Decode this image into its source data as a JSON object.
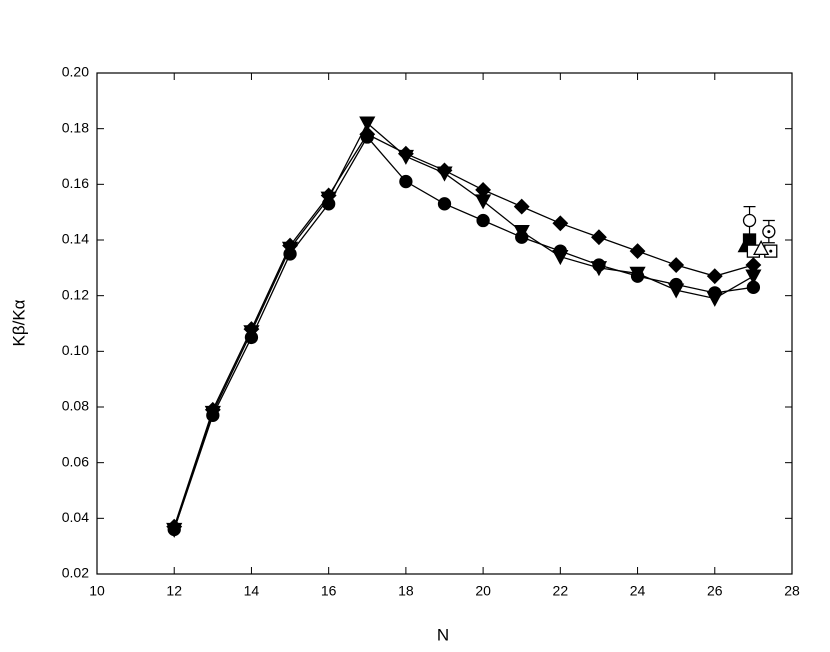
{
  "chart_data": {
    "type": "line",
    "x_label": "N",
    "y_label": "Kβ/Kα",
    "xlim": [
      10,
      28
    ],
    "ylim": [
      0.02,
      0.2
    ],
    "xticks": [
      10,
      12,
      14,
      16,
      18,
      20,
      22,
      24,
      26,
      28
    ],
    "yticks": [
      0.02,
      0.04,
      0.06,
      0.08,
      {
        "value": 0.1,
        "label": "0.10"
      },
      0.12,
      0.14,
      0.16,
      0.18,
      {
        "value": 0.2,
        "label": "0.20"
      }
    ],
    "x": [
      12,
      13,
      14,
      15,
      16,
      17,
      18,
      19,
      20,
      21,
      22,
      23,
      24,
      25,
      26,
      27
    ],
    "color": "#000000",
    "series": [
      {
        "marker": "circle",
        "filled": true,
        "line": true,
        "values": [
          0.036,
          0.077,
          0.105,
          0.135,
          0.153,
          0.177,
          0.161,
          0.153,
          0.147,
          0.141,
          0.136,
          0.131,
          0.127,
          0.124,
          0.121,
          0.123
        ]
      },
      {
        "marker": "diamond",
        "filled": true,
        "line": true,
        "values": [
          0.037,
          0.079,
          0.108,
          0.138,
          0.156,
          0.178,
          0.171,
          0.165,
          0.158,
          0.152,
          0.146,
          0.141,
          0.136,
          0.131,
          0.127,
          0.131
        ]
      },
      {
        "marker": "triangle-down",
        "filled": true,
        "line": true,
        "values": [
          0.036,
          0.078,
          0.107,
          0.137,
          0.155,
          0.182,
          0.17,
          0.164,
          0.154,
          0.143,
          0.134,
          0.13,
          0.128,
          0.122,
          0.119,
          0.127
        ]
      },
      {
        "marker": "circle",
        "filled": false,
        "line": false,
        "x": [
          26.9
        ],
        "values": [
          0.147
        ],
        "errors": [
          0.005
        ]
      },
      {
        "marker": "circle-dot",
        "filled": false,
        "line": false,
        "x": [
          27.4
        ],
        "values": [
          0.143
        ],
        "errors": [
          0.004
        ]
      },
      {
        "marker": "square",
        "filled": true,
        "line": false,
        "x": [
          26.9
        ],
        "values": [
          0.14
        ]
      },
      {
        "marker": "triangle-up",
        "filled": true,
        "line": false,
        "x": [
          26.8
        ],
        "values": [
          0.138
        ]
      },
      {
        "marker": "square-dot",
        "filled": false,
        "line": false,
        "x": [
          27.45
        ],
        "values": [
          0.136
        ],
        "errors": [
          0.002
        ]
      },
      {
        "marker": "square",
        "filled": false,
        "line": false,
        "x": [
          27.0
        ],
        "values": [
          0.136
        ]
      },
      {
        "marker": "triangle-up",
        "filled": false,
        "line": false,
        "x": [
          27.2
        ],
        "values": [
          0.137
        ]
      }
    ]
  }
}
